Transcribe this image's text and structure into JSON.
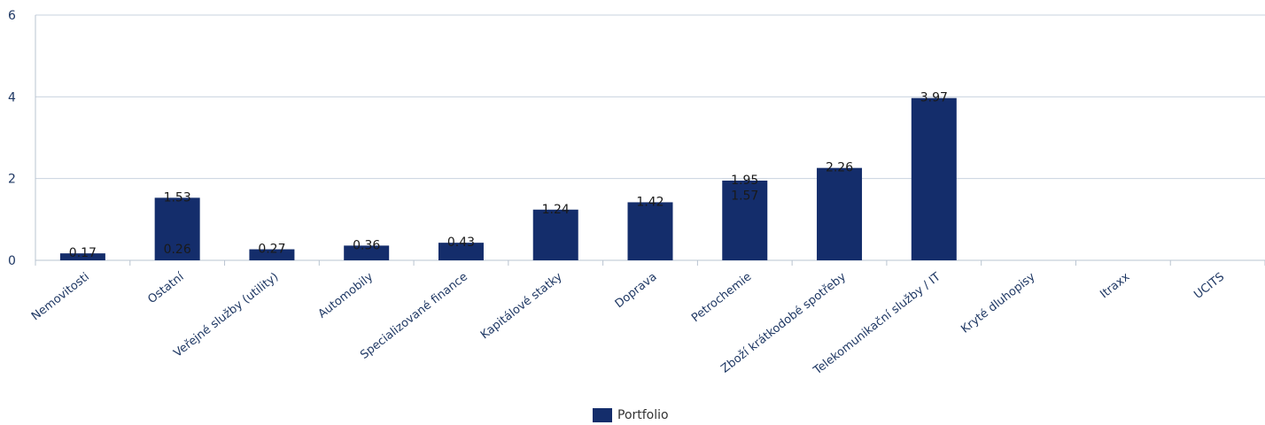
{
  "chart_data": {
    "type": "bar",
    "categories": [
      "Nemovitosti",
      "Ostatní",
      "Veřejné služby (utility)",
      "Automobily",
      "Specializované finance",
      "Kapitálové statky",
      "Doprava",
      "Petrochemie",
      "Zboží krátkodobé spotřeby",
      "Telekomunikační služby / IT",
      "Kryté dluhopisy",
      "Itraxx",
      "UCITS"
    ],
    "series": [
      {
        "name": "Portfolio",
        "values": [
          0.17,
          1.53,
          0.27,
          0.36,
          0.43,
          1.24,
          1.42,
          1.95,
          2.26,
          3.97,
          null,
          null,
          null
        ],
        "labels": [
          "0.17",
          "1.53",
          "0.27",
          "0.36",
          "0.43",
          "1.24",
          "1.42",
          "1.95",
          "2.26",
          "3.97",
          "",
          "",
          ""
        ]
      }
    ],
    "extra_labels": [
      {
        "category_index": 1,
        "value": 0.26,
        "text": "0.26"
      },
      {
        "category_index": 7,
        "value": 1.57,
        "text": "1.57"
      }
    ],
    "yticks": [
      0,
      2,
      4,
      6
    ],
    "ytick_labels": [
      "0",
      "2",
      "4",
      "6"
    ],
    "ylim": [
      0,
      6
    ],
    "grid": true,
    "legend_position": "bottom-center",
    "colors": {
      "bar": "#142d6b",
      "grid": "#c9d3df",
      "axis": "#b9c4d0",
      "tick_text": "#1f3864",
      "label_text": "#1a1a1a"
    }
  },
  "legend": {
    "label": "Portfolio"
  }
}
